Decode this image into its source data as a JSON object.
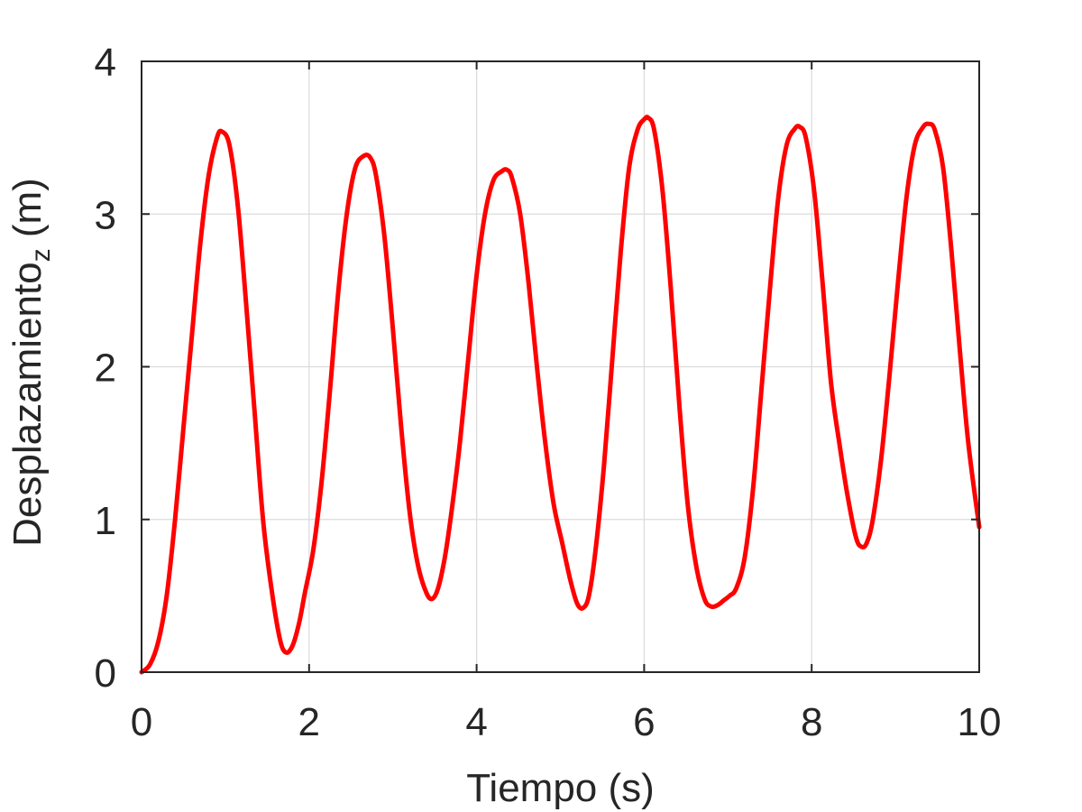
{
  "chart_data": {
    "type": "line",
    "title": "",
    "xlabel": "Tiempo (s)",
    "ylabel": {
      "prefix": "Desplazamiento",
      "subscript": "z",
      "suffix": " (m)"
    },
    "xlim": [
      0,
      10
    ],
    "ylim": [
      0,
      4
    ],
    "x_ticks": [
      0,
      2,
      4,
      6,
      8,
      10
    ],
    "y_ticks": [
      0,
      1,
      2,
      3,
      4
    ],
    "x_tick_labels": [
      "0",
      "2",
      "4",
      "6",
      "8",
      "10"
    ],
    "y_tick_labels": [
      "0",
      "1",
      "2",
      "3",
      "4"
    ],
    "grid": true,
    "box": true,
    "series": [
      {
        "color": "#ff0000",
        "x": [
          0,
          0.1,
          0.2,
          0.3,
          0.4,
          0.5,
          0.6,
          0.7,
          0.8,
          0.9,
          0.96,
          1.05,
          1.15,
          1.25,
          1.35,
          1.45,
          1.55,
          1.65,
          1.72,
          1.8,
          1.88,
          1.95,
          2.05,
          2.15,
          2.25,
          2.35,
          2.45,
          2.55,
          2.65,
          2.73,
          2.8,
          2.9,
          3.0,
          3.1,
          3.2,
          3.3,
          3.4,
          3.47,
          3.54,
          3.62,
          3.7,
          3.8,
          3.9,
          4.0,
          4.1,
          4.2,
          4.3,
          4.36,
          4.42,
          4.52,
          4.62,
          4.72,
          4.82,
          4.92,
          5.02,
          5.12,
          5.2,
          5.27,
          5.34,
          5.42,
          5.52,
          5.62,
          5.72,
          5.82,
          5.92,
          6.0,
          6.05,
          6.12,
          6.22,
          6.32,
          6.42,
          6.52,
          6.62,
          6.72,
          6.8,
          6.88,
          6.95,
          7.02,
          7.1,
          7.2,
          7.3,
          7.4,
          7.5,
          7.6,
          7.7,
          7.8,
          7.86,
          7.93,
          8.03,
          8.13,
          8.23,
          8.33,
          8.43,
          8.53,
          8.6,
          8.66,
          8.73,
          8.83,
          8.93,
          9.03,
          9.13,
          9.23,
          9.33,
          9.4,
          9.47,
          9.57,
          9.67,
          9.77,
          9.87,
          10.0
        ],
        "y": [
          0.0,
          0.05,
          0.2,
          0.5,
          1.0,
          1.6,
          2.2,
          2.8,
          3.25,
          3.5,
          3.54,
          3.45,
          3.05,
          2.4,
          1.7,
          1.0,
          0.55,
          0.22,
          0.13,
          0.17,
          0.32,
          0.52,
          0.8,
          1.25,
          1.85,
          2.5,
          3.0,
          3.3,
          3.38,
          3.37,
          3.25,
          2.85,
          2.25,
          1.6,
          1.05,
          0.7,
          0.52,
          0.48,
          0.55,
          0.75,
          1.05,
          1.5,
          2.05,
          2.6,
          3.0,
          3.22,
          3.28,
          3.29,
          3.24,
          3.0,
          2.55,
          2.0,
          1.5,
          1.1,
          0.85,
          0.6,
          0.45,
          0.42,
          0.5,
          0.8,
          1.35,
          2.05,
          2.75,
          3.3,
          3.55,
          3.62,
          3.63,
          3.55,
          3.15,
          2.5,
          1.75,
          1.1,
          0.7,
          0.48,
          0.43,
          0.44,
          0.47,
          0.5,
          0.55,
          0.75,
          1.2,
          1.85,
          2.5,
          3.1,
          3.45,
          3.56,
          3.57,
          3.5,
          3.15,
          2.55,
          1.9,
          1.5,
          1.15,
          0.88,
          0.82,
          0.85,
          1.0,
          1.4,
          1.95,
          2.55,
          3.1,
          3.45,
          3.57,
          3.59,
          3.55,
          3.3,
          2.75,
          2.1,
          1.5,
          0.95
        ]
      }
    ]
  }
}
